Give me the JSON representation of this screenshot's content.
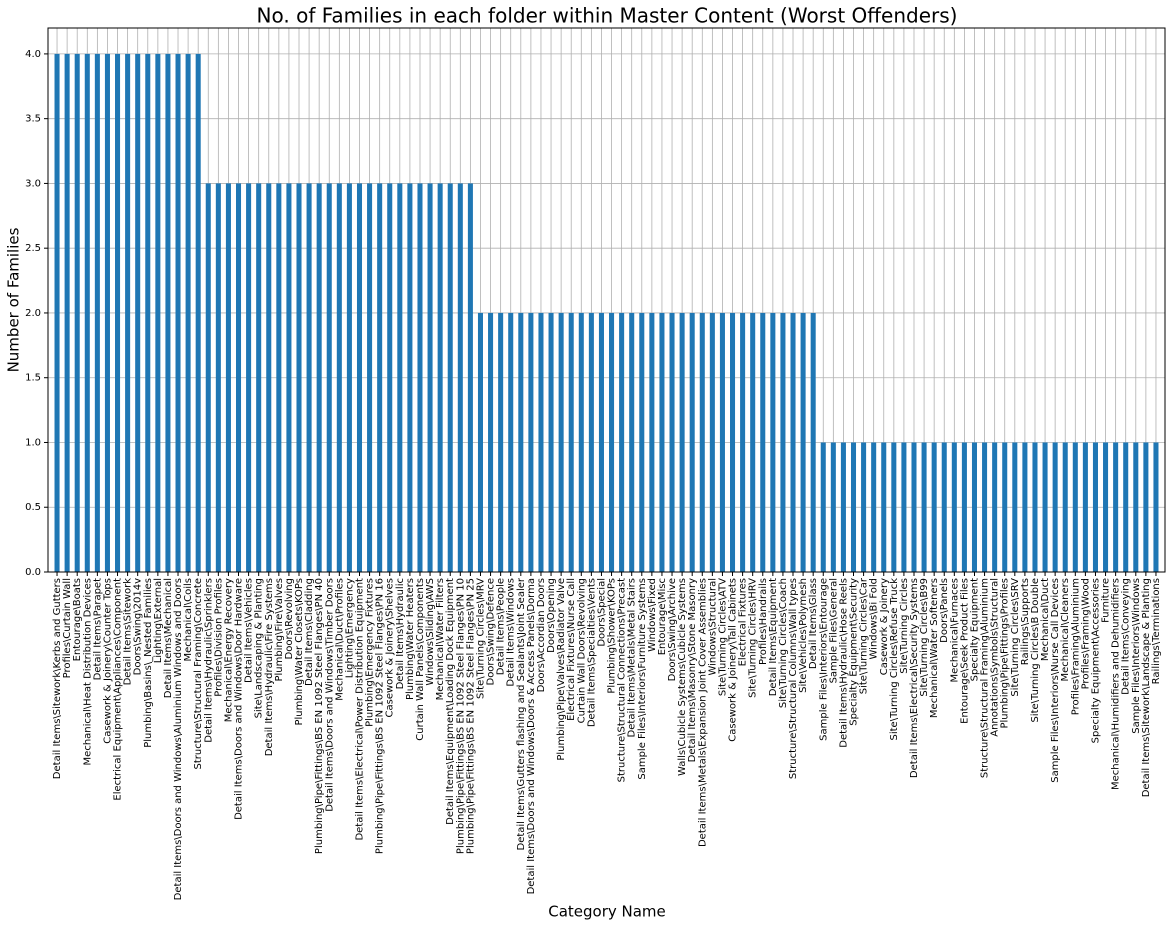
{
  "chart_data": {
    "type": "bar",
    "title": "No. of Families in each folder within Master Content (Worst Offenders)",
    "xlabel": "Category Name",
    "ylabel": "Number of Families",
    "color": "#1f77b4",
    "grid": true,
    "ylim": [
      0,
      4.2
    ],
    "yticks": [
      {
        "value": 0,
        "label": "0.0"
      },
      {
        "value": 0.5,
        "label": "0.5"
      },
      {
        "value": 1,
        "label": "1.0"
      },
      {
        "value": 1.5,
        "label": "1.5"
      },
      {
        "value": 2,
        "label": "2.0"
      },
      {
        "value": 2.5,
        "label": "2.5"
      },
      {
        "value": 3,
        "label": "3.0"
      },
      {
        "value": 3.5,
        "label": "3.5"
      },
      {
        "value": 4,
        "label": "4.0"
      }
    ],
    "categories": [
      "Detail Items\\Sitework\\Kerbs and Gutters",
      "Profiles\\Curtain Wall",
      "Entourage\\Boats",
      "Mechanical\\Heat Distribution Devices",
      "Detail Items\\Parapet",
      "Casework & Joinery\\Counter Tops",
      "Electrical Equipment\\Appliances\\Component",
      "Detail Items\\Sitework",
      "Doors\\Swing\\2014v",
      "Plumbing\\Basins\\_Nested Families",
      "Lighting\\External",
      "Detail Items\\Mechanical",
      "Detail Items\\Doors and Windows\\Aluminium Windows and Doors",
      "Mechanical\\Coils",
      "Structure\\Structural Framing\\Concrete",
      "Detail Items\\Hydraulic\\Sprinklers",
      "Profiles\\Division Profiles",
      "Mechanical\\Energy Recovery",
      "Detail Items\\Doors and Windows\\Door Hardware",
      "Detail Items\\Vehicles",
      "Site\\Landscaping & Planting",
      "Detail Items\\Hydraulic\\Fire Systems",
      "Plumbing\\Fire\\Valves",
      "Doors\\Revolving",
      "Plumbing\\Water Closets\\KOPs",
      "Detail Items\\Cladding",
      "Plumbing\\Pipe\\Fittings\\BS EN 1092 Steel Flanges\\PN 40",
      "Detail Items\\Doors and Windows\\Timber Doors",
      "Mechanical\\Duct\\Profiles",
      "Lighting\\Emergency",
      "Detail Items\\Electrical\\Power Distribution Equipment",
      "Plumbing\\Emergency Fixtures",
      "Plumbing\\Pipe\\Fittings\\BS EN 1092 Steel Flanges\\PN 16",
      "Casework & Joinery\\Shelves",
      "Detail Items\\Hydraulic",
      "Plumbing\\Water Heaters",
      "Curtain Wall Panels\\Components",
      "Windows\\Sliding\\AWS",
      "Mechanical\\Water Filters",
      "Detail Items\\Equipment\\Loading Dock Equipment",
      "Plumbing\\Pipe\\Fittings\\BS EN 1092 Steel Flanges\\PN 10",
      "Plumbing\\Pipe\\Fittings\\BS EN 1092 Steel Flanges\\PN 25",
      "Site\\Turning Circles\\MRV",
      "Doors\\Swing\\Defence",
      "Detail Items\\People",
      "Detail Items\\Windows",
      "Detail Items\\Gutters flashing and Sealants\\Joint Sealer",
      "Detail Items\\Doors and Windows\\Doors & Access Panels\\Dorma",
      "Doors\\Accordian Doors",
      "Doors\\Opening",
      "Plumbing\\Pipe\\Valves\\Radiator Valve",
      "Electrical Fixtures\\Nurse Call",
      "Curtain Wall Doors\\Revolving",
      "Detail Items\\Specialties\\Vents",
      "Doors\\Special",
      "Plumbing\\Shower\\KOPs",
      "Structure\\Structural Connections\\Precast",
      "Detail Items\\Metals\\Metal Stairs",
      "Sample Files\\Interiors\\Furniture Systems",
      "Windows\\Fixed",
      "Entourage\\Misc",
      "Doors\\Swing\\Archive",
      "Walls\\Cubicle Systems\\Cubicle Systems",
      "Detail Items\\Masonry\\Stone Masonry",
      "Detail Items\\Metals\\Expansion Joint Cover Assemblies",
      "Windows\\Structural",
      "Site\\Turning Circles\\ATV",
      "Casework & Joinery\\Tall Cabinets",
      "Electrical Fixtures",
      "Site\\Turning Circles\\HRV",
      "Profiles\\Handrails",
      "Detail Items\\Equipment",
      "Site\\Turning Circles\\Coach",
      "Structure\\Structural Columns\\Wall types",
      "Site\\Vehicles\\Polymesh",
      "Detail Items\\Glass",
      "Sample Files\\Interiors\\Entourage",
      "Sample Files\\General",
      "Detail Items\\Hydraulic\\Hose Reels",
      "Specialty Equipment\\Security",
      "Site\\Turning Circles\\Car",
      "Windows\\Bi Fold",
      "Casework & Joinery",
      "Site\\Turning Circles\\Refuse Truck",
      "Site\\Turning Circles",
      "Detail Items\\Electrical\\Security Systems",
      "Site\\Turning Circles\\B99",
      "Mechanical\\Water Softeners",
      "Doors\\Panels",
      "Mechanical\\Furnaces",
      "Entourage\\Seek Product Files",
      "Specialty Equipment",
      "Structure\\Structural Framing\\Aluminium",
      "Annotations\\Symbols\\Structural",
      "Plumbing\\Pipe\\Fittings\\Profiles",
      "Site\\Turning Circles\\SRV",
      "Railings\\Supports",
      "Site\\Turning Circles\\B Double",
      "Mechanical\\Duct",
      "Sample Files\\Interiors\\Nurse Call Devices",
      "Mechanical\\Cleaners",
      "Profiles\\Framing\\Aluminium",
      "Profiles\\Framing\\Wood",
      "Specialty Equipment\\Accessories",
      "Furniture",
      "Mechanical\\Humidifiers and Dehumidifiers",
      "Detail Items\\Conveying",
      "Sample Files\\Interiors\\Windows",
      "Detail Items\\Sitework\\Landscape & Planting",
      "Railings\\Terminations"
    ],
    "values": [
      4,
      4,
      4,
      4,
      4,
      4,
      4,
      4,
      4,
      4,
      4,
      4,
      4,
      4,
      4,
      3,
      3,
      3,
      3,
      3,
      3,
      3,
      3,
      3,
      3,
      3,
      3,
      3,
      3,
      3,
      3,
      3,
      3,
      3,
      3,
      3,
      3,
      3,
      3,
      3,
      3,
      3,
      2,
      2,
      2,
      2,
      2,
      2,
      2,
      2,
      2,
      2,
      2,
      2,
      2,
      2,
      2,
      2,
      2,
      2,
      2,
      2,
      2,
      2,
      2,
      2,
      2,
      2,
      2,
      2,
      2,
      2,
      2,
      2,
      2,
      2,
      1,
      1,
      1,
      1,
      1,
      1,
      1,
      1,
      1,
      1,
      1,
      1,
      1,
      1,
      1,
      1,
      1,
      1,
      1,
      1,
      1,
      1,
      1,
      1,
      1,
      1,
      1,
      1,
      1,
      1,
      1,
      1,
      1,
      1
    ]
  }
}
